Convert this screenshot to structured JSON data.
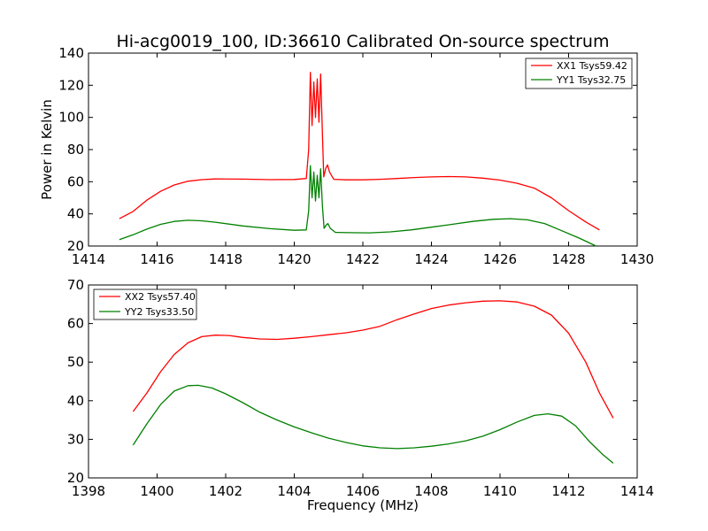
{
  "figure": {
    "title": "Hi-acg0019_100, ID:36610 Calibrated On-source spectrum"
  },
  "chart_data": [
    {
      "type": "line",
      "title": "Hi-acg0019_100, ID:36610 Calibrated On-source spectrum",
      "xlabel": "",
      "ylabel": "Power in Kelvin",
      "xlim": [
        1414,
        1430
      ],
      "ylim": [
        20,
        140
      ],
      "xticks": [
        1414,
        1416,
        1418,
        1420,
        1422,
        1424,
        1426,
        1428,
        1430
      ],
      "yticks": [
        20,
        40,
        60,
        80,
        100,
        120,
        140
      ],
      "grid": false,
      "legend": "top-right",
      "series": [
        {
          "name": "XX1 Tsys59.42",
          "color": "#ff0000",
          "points": [
            [
              1414.9,
              37.0
            ],
            [
              1415.3,
              41.5
            ],
            [
              1415.7,
              48.5
            ],
            [
              1416.1,
              54.0
            ],
            [
              1416.5,
              58.0
            ],
            [
              1416.9,
              60.3
            ],
            [
              1417.3,
              61.3
            ],
            [
              1417.7,
              61.7
            ],
            [
              1418.5,
              61.6
            ],
            [
              1419.3,
              61.3
            ],
            [
              1420.0,
              61.4
            ],
            [
              1420.35,
              62.0
            ],
            [
              1420.42,
              80.0
            ],
            [
              1420.47,
              128.0
            ],
            [
              1420.52,
              95.0
            ],
            [
              1420.57,
              122.0
            ],
            [
              1420.62,
              100.0
            ],
            [
              1420.67,
              124.0
            ],
            [
              1420.72,
              97.0
            ],
            [
              1420.77,
              127.0
            ],
            [
              1420.82,
              90.0
            ],
            [
              1420.86,
              63.0
            ],
            [
              1420.92,
              68.5
            ],
            [
              1420.97,
              70.5
            ],
            [
              1421.03,
              66.0
            ],
            [
              1421.15,
              61.5
            ],
            [
              1421.5,
              61.2
            ],
            [
              1422.0,
              61.2
            ],
            [
              1422.5,
              61.5
            ],
            [
              1423.0,
              62.0
            ],
            [
              1423.5,
              62.6
            ],
            [
              1424.0,
              63.0
            ],
            [
              1424.5,
              63.2
            ],
            [
              1425.0,
              63.0
            ],
            [
              1425.5,
              62.2
            ],
            [
              1426.0,
              61.0
            ],
            [
              1426.5,
              59.0
            ],
            [
              1427.0,
              56.0
            ],
            [
              1427.5,
              50.0
            ],
            [
              1428.0,
              42.0
            ],
            [
              1428.5,
              35.0
            ],
            [
              1428.9,
              30.0
            ]
          ]
        },
        {
          "name": "YY1 Tsys32.75",
          "color": "#008000",
          "points": [
            [
              1414.9,
              24.0
            ],
            [
              1415.3,
              27.0
            ],
            [
              1415.7,
              30.5
            ],
            [
              1416.1,
              33.5
            ],
            [
              1416.5,
              35.3
            ],
            [
              1416.9,
              36.0
            ],
            [
              1417.3,
              35.7
            ],
            [
              1417.7,
              34.8
            ],
            [
              1418.5,
              32.5
            ],
            [
              1419.3,
              30.8
            ],
            [
              1420.0,
              29.8
            ],
            [
              1420.35,
              30.0
            ],
            [
              1420.42,
              42.0
            ],
            [
              1420.47,
              70.0
            ],
            [
              1420.52,
              50.0
            ],
            [
              1420.57,
              66.0
            ],
            [
              1420.62,
              48.0
            ],
            [
              1420.67,
              64.0
            ],
            [
              1420.72,
              50.0
            ],
            [
              1420.77,
              68.0
            ],
            [
              1420.82,
              45.0
            ],
            [
              1420.87,
              31.0
            ],
            [
              1420.93,
              33.0
            ],
            [
              1420.98,
              34.0
            ],
            [
              1421.05,
              31.0
            ],
            [
              1421.2,
              28.5
            ],
            [
              1421.6,
              28.3
            ],
            [
              1422.2,
              28.2
            ],
            [
              1422.8,
              28.8
            ],
            [
              1423.4,
              30.0
            ],
            [
              1424.0,
              31.7
            ],
            [
              1424.6,
              33.5
            ],
            [
              1425.2,
              35.3
            ],
            [
              1425.8,
              36.6
            ],
            [
              1426.3,
              37.0
            ],
            [
              1426.8,
              36.3
            ],
            [
              1427.3,
              34.0
            ],
            [
              1427.8,
              29.5
            ],
            [
              1428.3,
              25.0
            ],
            [
              1428.8,
              20.0
            ]
          ]
        }
      ]
    },
    {
      "type": "line",
      "title": "",
      "xlabel": "Frequency (MHz)",
      "ylabel": "",
      "xlim": [
        1398,
        1414
      ],
      "ylim": [
        20,
        70
      ],
      "xticks": [
        1398,
        1400,
        1402,
        1404,
        1406,
        1408,
        1410,
        1412,
        1414
      ],
      "yticks": [
        20,
        30,
        40,
        50,
        60,
        70
      ],
      "grid": false,
      "legend": "top-left",
      "series": [
        {
          "name": "XX2 Tsys57.40",
          "color": "#ff0000",
          "points": [
            [
              1399.3,
              37.2
            ],
            [
              1399.7,
              42.0
            ],
            [
              1400.1,
              47.5
            ],
            [
              1400.5,
              52.0
            ],
            [
              1400.9,
              55.0
            ],
            [
              1401.3,
              56.6
            ],
            [
              1401.7,
              57.0
            ],
            [
              1402.1,
              56.9
            ],
            [
              1402.5,
              56.4
            ],
            [
              1403.0,
              56.0
            ],
            [
              1403.5,
              55.9
            ],
            [
              1404.0,
              56.2
            ],
            [
              1404.5,
              56.6
            ],
            [
              1405.0,
              57.1
            ],
            [
              1405.5,
              57.6
            ],
            [
              1406.0,
              58.3
            ],
            [
              1406.5,
              59.3
            ],
            [
              1407.0,
              61.0
            ],
            [
              1407.5,
              62.5
            ],
            [
              1408.0,
              63.9
            ],
            [
              1408.5,
              64.8
            ],
            [
              1409.0,
              65.4
            ],
            [
              1409.5,
              65.8
            ],
            [
              1410.0,
              65.9
            ],
            [
              1410.5,
              65.6
            ],
            [
              1411.0,
              64.5
            ],
            [
              1411.5,
              62.2
            ],
            [
              1412.0,
              57.5
            ],
            [
              1412.5,
              50.0
            ],
            [
              1412.9,
              42.0
            ],
            [
              1413.3,
              35.5
            ]
          ]
        },
        {
          "name": "YY2 Tsys33.50",
          "color": "#008000",
          "points": [
            [
              1399.3,
              28.5
            ],
            [
              1399.7,
              34.0
            ],
            [
              1400.1,
              39.0
            ],
            [
              1400.5,
              42.5
            ],
            [
              1400.9,
              43.9
            ],
            [
              1401.2,
              44.0
            ],
            [
              1401.6,
              43.3
            ],
            [
              1402.0,
              41.8
            ],
            [
              1402.5,
              39.5
            ],
            [
              1403.0,
              37.0
            ],
            [
              1403.5,
              35.0
            ],
            [
              1404.0,
              33.2
            ],
            [
              1404.5,
              31.7
            ],
            [
              1405.0,
              30.3
            ],
            [
              1405.5,
              29.2
            ],
            [
              1406.0,
              28.3
            ],
            [
              1406.5,
              27.8
            ],
            [
              1407.0,
              27.6
            ],
            [
              1407.5,
              27.8
            ],
            [
              1408.0,
              28.2
            ],
            [
              1408.5,
              28.8
            ],
            [
              1409.0,
              29.6
            ],
            [
              1409.5,
              30.8
            ],
            [
              1410.0,
              32.5
            ],
            [
              1410.5,
              34.5
            ],
            [
              1411.0,
              36.2
            ],
            [
              1411.4,
              36.6
            ],
            [
              1411.8,
              36.0
            ],
            [
              1412.2,
              33.5
            ],
            [
              1412.6,
              29.5
            ],
            [
              1413.0,
              26.0
            ],
            [
              1413.3,
              23.8
            ]
          ]
        }
      ]
    }
  ]
}
